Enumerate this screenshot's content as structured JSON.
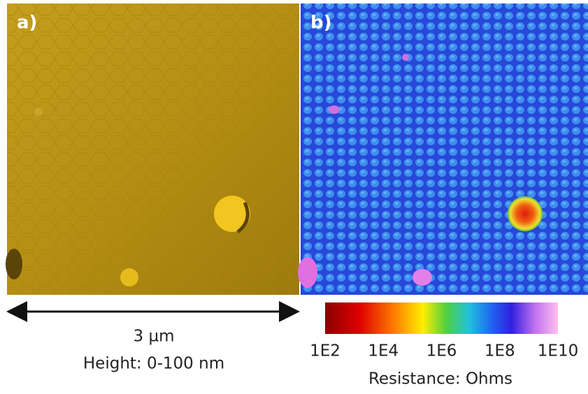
{
  "panels": [
    {
      "label": "a)"
    },
    {
      "label": "b)"
    }
  ],
  "scale_bar": {
    "length": "3 µm",
    "height_range": "Height: 0-100 nm"
  },
  "colorbar": {
    "ticks": [
      "1E2",
      "1E4",
      "1E6",
      "1E8",
      "1E10"
    ],
    "label": "Resistance: Ohms"
  }
}
